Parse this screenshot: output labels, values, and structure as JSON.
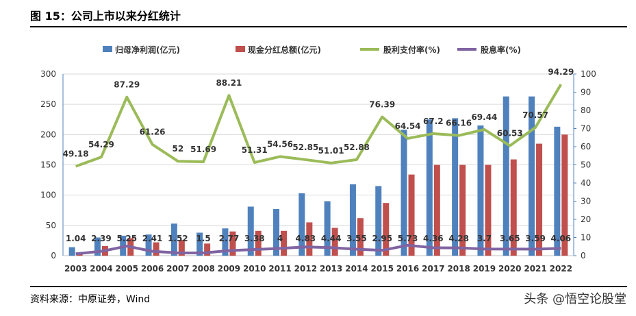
{
  "title": "图 15：公司上市以来分红统计",
  "source": "资料来源：中原证券，Wind",
  "watermark": "头条 @悟空论股堂",
  "chart_data": {
    "type": "bar+line",
    "categories": [
      "2003",
      "2004",
      "2005",
      "2006",
      "2007",
      "2008",
      "2009",
      "2010",
      "2011",
      "2012",
      "2013",
      "2014",
      "2015",
      "2016",
      "2017",
      "2018",
      "2019",
      "2020",
      "2021",
      "2022"
    ],
    "left_axis": {
      "ylim": [
        0,
        300
      ],
      "ticks": [
        0,
        50,
        100,
        150,
        200,
        250,
        300
      ]
    },
    "right_axis": {
      "ylim": [
        0,
        100
      ],
      "ticks": [
        0,
        10,
        20,
        30,
        40,
        50,
        60,
        70,
        80,
        90,
        100
      ]
    },
    "grid": true,
    "legend_placement": "top",
    "series": [
      {
        "name": "归母净利润(亿元)",
        "type": "bar",
        "axis": "left",
        "color": "#4f81bd",
        "values": [
          14,
          30,
          33,
          35,
          53,
          38,
          45,
          81,
          77,
          103,
          90,
          118,
          115,
          208,
          225,
          227,
          215,
          263,
          263,
          213
        ]
      },
      {
        "name": "现金分红总额(亿元)",
        "type": "bar",
        "axis": "left",
        "color": "#c0504d",
        "values": [
          3,
          16,
          29,
          22,
          26,
          20,
          40,
          41,
          41,
          55,
          46,
          62,
          87,
          134,
          150,
          150,
          150,
          159,
          185,
          200
        ]
      },
      {
        "name": "股利支付率(%)",
        "type": "line",
        "axis": "right",
        "color": "#9bbb59",
        "values": [
          49.18,
          54.29,
          87.29,
          61.26,
          52,
          51.69,
          88.21,
          51.31,
          54.56,
          52.85,
          51.01,
          52.88,
          76.39,
          64.54,
          67.2,
          66.16,
          69.44,
          60.53,
          70.57,
          94.29
        ],
        "labels": [
          "49.18",
          "54.29",
          "87.29",
          "61.26",
          "52",
          "51.69",
          "88.21",
          "51.31",
          "54.56",
          "52.85",
          "51.01",
          "52.88",
          "76.39",
          "64.54",
          "67.2",
          "66.16",
          "69.44",
          "60.53",
          "70.57",
          "94.29"
        ]
      },
      {
        "name": "股息率(%)",
        "type": "line",
        "axis": "right",
        "color": "#8064a2",
        "values": [
          1.04,
          2.39,
          5.25,
          2.41,
          1.52,
          1.5,
          2.77,
          3.38,
          4,
          4.83,
          4.44,
          3.55,
          2.95,
          5.73,
          4.36,
          4.28,
          3.7,
          3.65,
          3.59,
          4.06
        ],
        "labels": [
          "1.04",
          "2.39",
          "5.25",
          "2.41",
          "1.52",
          "1.5",
          "2.77",
          "3.38",
          "4",
          "4.83",
          "4.44",
          "3.55",
          "2.95",
          "5.73",
          "4.36",
          "4.28",
          "3.7",
          "3.65",
          "3.59",
          "4.06"
        ]
      }
    ]
  }
}
